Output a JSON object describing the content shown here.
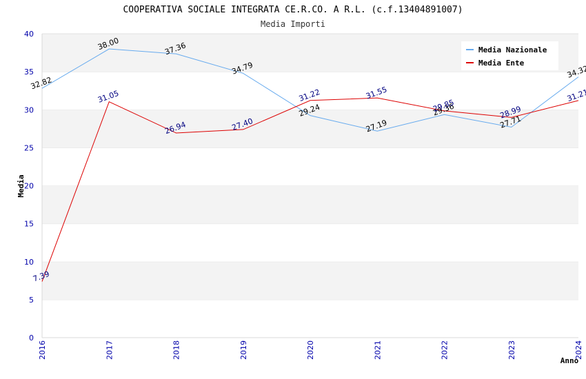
{
  "chart_data": {
    "type": "line",
    "title": "COOPERATIVA SOCIALE INTEGRATA CE.R.CO. A R.L. (c.f.13404891007)",
    "subtitle": "Media Importi",
    "xlabel": "Anno",
    "ylabel": "Media",
    "categories": [
      "2016",
      "2017",
      "2018",
      "2019",
      "2020",
      "2021",
      "2022",
      "2023",
      "2024"
    ],
    "ylim": [
      0,
      40
    ],
    "yticks": [
      "0",
      "5",
      "10",
      "15",
      "20",
      "25",
      "30",
      "35",
      "40"
    ],
    "grid": "horizontal-bands",
    "legend_position": "top-right",
    "series": [
      {
        "name": "Media Nazionale",
        "color": "#66aaee",
        "label_color": "#000000",
        "values": [
          32.82,
          38.0,
          37.36,
          34.79,
          29.24,
          27.19,
          29.36,
          27.71,
          34.32
        ],
        "labels": [
          "32.82",
          "38.00",
          "37.36",
          "34.79",
          "29.24",
          "27.19",
          "29.36",
          "27.71",
          "34.32"
        ]
      },
      {
        "name": "Media Ente",
        "color": "#dd0000",
        "label_color": "#000080",
        "values": [
          7.39,
          31.05,
          26.94,
          27.4,
          31.22,
          31.55,
          29.85,
          28.99,
          31.21
        ],
        "labels": [
          "7.39",
          "31.05",
          "26.94",
          "27.40",
          "31.22",
          "31.55",
          "29.85",
          "28.99",
          "31.21"
        ]
      }
    ]
  }
}
